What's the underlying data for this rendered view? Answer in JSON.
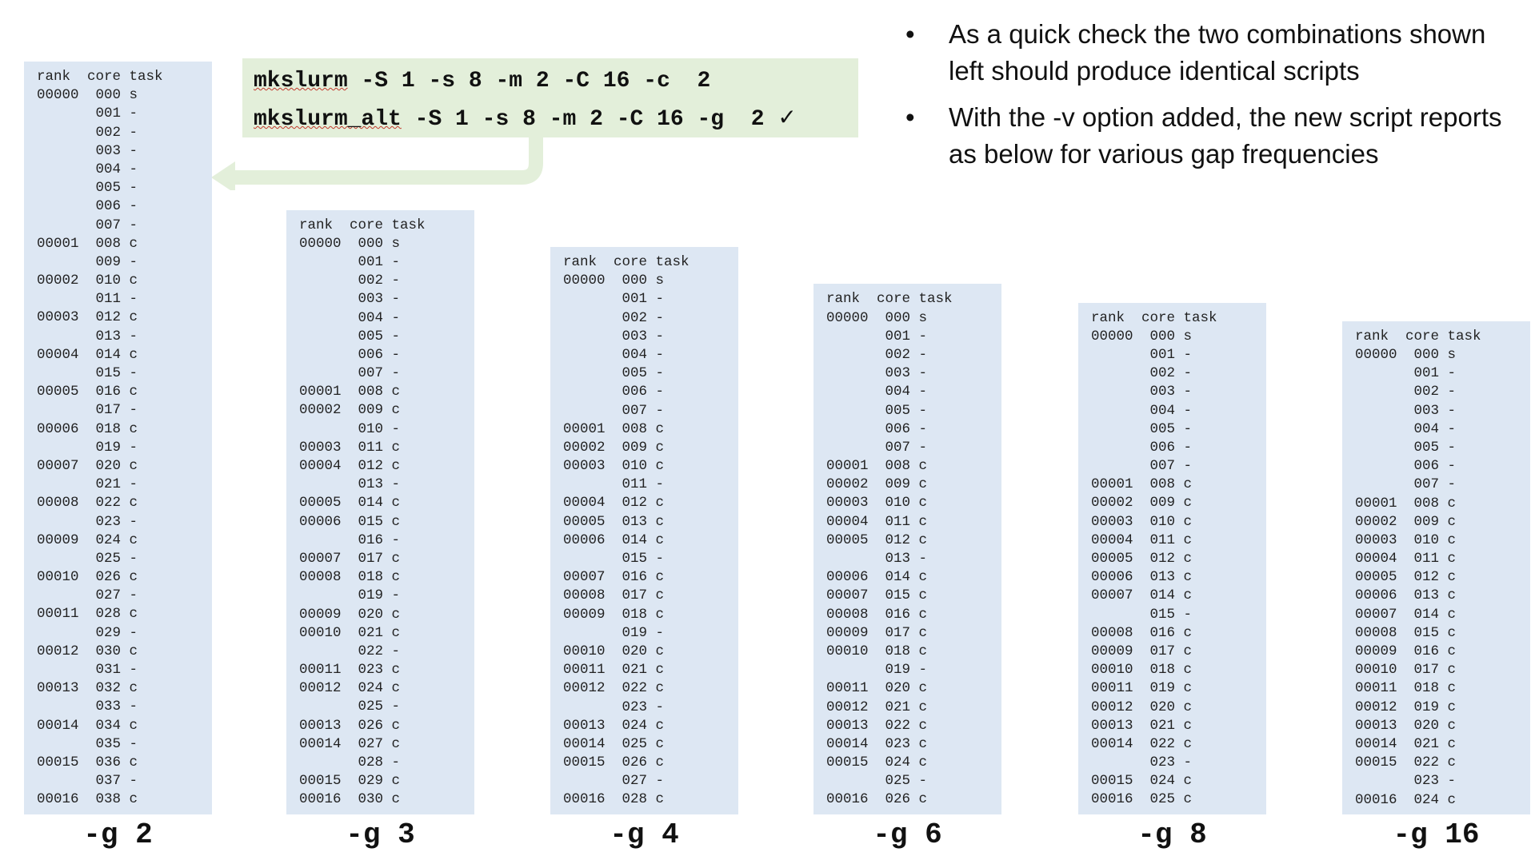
{
  "bullets": [
    "As a quick check the two combinations shown left should produce identical scripts",
    "With the -v option added, the new script reports as below for various gap frequencies"
  ],
  "commands": [
    {
      "name": "mkslurm",
      "args": " -S 1 -s 8 -m 2 -C 16 -c  2",
      "mark": ""
    },
    {
      "name": "mkslurm_alt",
      "args": " -S 1 -s 8 -m 2 -C 16 -g  2 ",
      "mark": "✓"
    }
  ],
  "columns": [
    {
      "label": "-g 2",
      "lines": [
        "rank  core task",
        "00000  000 s",
        "       001 -",
        "       002 -",
        "       003 -",
        "       004 -",
        "       005 -",
        "       006 -",
        "       007 -",
        "00001  008 c",
        "       009 -",
        "00002  010 c",
        "       011 -",
        "00003  012 c",
        "       013 -",
        "00004  014 c",
        "       015 -",
        "00005  016 c",
        "       017 -",
        "00006  018 c",
        "       019 -",
        "00007  020 c",
        "       021 -",
        "00008  022 c",
        "       023 -",
        "00009  024 c",
        "       025 -",
        "00010  026 c",
        "       027 -",
        "00011  028 c",
        "       029 -",
        "00012  030 c",
        "       031 -",
        "00013  032 c",
        "       033 -",
        "00014  034 c",
        "       035 -",
        "00015  036 c",
        "       037 -",
        "00016  038 c"
      ]
    },
    {
      "label": "-g 3",
      "lines": [
        "rank  core task",
        "00000  000 s",
        "       001 -",
        "       002 -",
        "       003 -",
        "       004 -",
        "       005 -",
        "       006 -",
        "       007 -",
        "00001  008 c",
        "00002  009 c",
        "       010 -",
        "00003  011 c",
        "00004  012 c",
        "       013 -",
        "00005  014 c",
        "00006  015 c",
        "       016 -",
        "00007  017 c",
        "00008  018 c",
        "       019 -",
        "00009  020 c",
        "00010  021 c",
        "       022 -",
        "00011  023 c",
        "00012  024 c",
        "       025 -",
        "00013  026 c",
        "00014  027 c",
        "       028 -",
        "00015  029 c",
        "00016  030 c"
      ]
    },
    {
      "label": "-g 4",
      "lines": [
        "rank  core task",
        "00000  000 s",
        "       001 -",
        "       002 -",
        "       003 -",
        "       004 -",
        "       005 -",
        "       006 -",
        "       007 -",
        "00001  008 c",
        "00002  009 c",
        "00003  010 c",
        "       011 -",
        "00004  012 c",
        "00005  013 c",
        "00006  014 c",
        "       015 -",
        "00007  016 c",
        "00008  017 c",
        "00009  018 c",
        "       019 -",
        "00010  020 c",
        "00011  021 c",
        "00012  022 c",
        "       023 -",
        "00013  024 c",
        "00014  025 c",
        "00015  026 c",
        "       027 -",
        "00016  028 c"
      ]
    },
    {
      "label": "-g 6",
      "lines": [
        "rank  core task",
        "00000  000 s",
        "       001 -",
        "       002 -",
        "       003 -",
        "       004 -",
        "       005 -",
        "       006 -",
        "       007 -",
        "00001  008 c",
        "00002  009 c",
        "00003  010 c",
        "00004  011 c",
        "00005  012 c",
        "       013 -",
        "00006  014 c",
        "00007  015 c",
        "00008  016 c",
        "00009  017 c",
        "00010  018 c",
        "       019 -",
        "00011  020 c",
        "00012  021 c",
        "00013  022 c",
        "00014  023 c",
        "00015  024 c",
        "       025 -",
        "00016  026 c"
      ]
    },
    {
      "label": "-g 8",
      "lines": [
        "rank  core task",
        "00000  000 s",
        "       001 -",
        "       002 -",
        "       003 -",
        "       004 -",
        "       005 -",
        "       006 -",
        "       007 -",
        "00001  008 c",
        "00002  009 c",
        "00003  010 c",
        "00004  011 c",
        "00005  012 c",
        "00006  013 c",
        "00007  014 c",
        "       015 -",
        "00008  016 c",
        "00009  017 c",
        "00010  018 c",
        "00011  019 c",
        "00012  020 c",
        "00013  021 c",
        "00014  022 c",
        "       023 -",
        "00015  024 c",
        "00016  025 c"
      ]
    },
    {
      "label": "-g 16",
      "lines": [
        "rank  core task",
        "00000  000 s",
        "       001 -",
        "       002 -",
        "       003 -",
        "       004 -",
        "       005 -",
        "       006 -",
        "       007 -",
        "00001  008 c",
        "00002  009 c",
        "00003  010 c",
        "00004  011 c",
        "00005  012 c",
        "00006  013 c",
        "00007  014 c",
        "00008  015 c",
        "00009  016 c",
        "00010  017 c",
        "00011  018 c",
        "00012  019 c",
        "00013  020 c",
        "00014  021 c",
        "00015  022 c",
        "       023 -",
        "00016  024 c"
      ]
    }
  ]
}
